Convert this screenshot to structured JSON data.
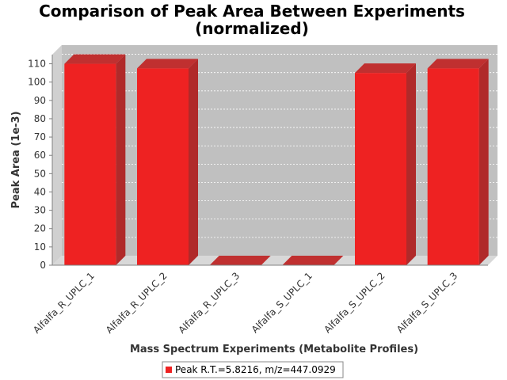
{
  "chart_data": {
    "type": "bar",
    "title_line1": "Comparison of Peak Area Between Experiments",
    "title_line2": "(normalized)",
    "xlabel": "Mass Spectrum Experiments (Metabolite Profiles)",
    "ylabel": "Peak Area (1e-3)",
    "categories": [
      "Alfalfa_R_UPLC_1",
      "Alfalfa_R_UPLC_2",
      "Alfalfa_R_UPLC_3",
      "Alfalfa_S_UPLC_1",
      "Alfalfa_S_UPLC_2",
      "Alfalfa_S_UPLC_3"
    ],
    "series": [
      {
        "name": "Peak R.T.=5.8216, m/z=447.0929",
        "values": [
          110,
          107.5,
          0,
          0,
          105,
          107.5
        ]
      }
    ],
    "yticks": [
      0,
      10,
      20,
      30,
      40,
      50,
      60,
      70,
      80,
      90,
      100,
      110
    ],
    "ylim": [
      0,
      115
    ],
    "grid": true,
    "legend_position": "bottom",
    "bar_color": "#ee2222",
    "plot_background": "#c0c0c0"
  }
}
